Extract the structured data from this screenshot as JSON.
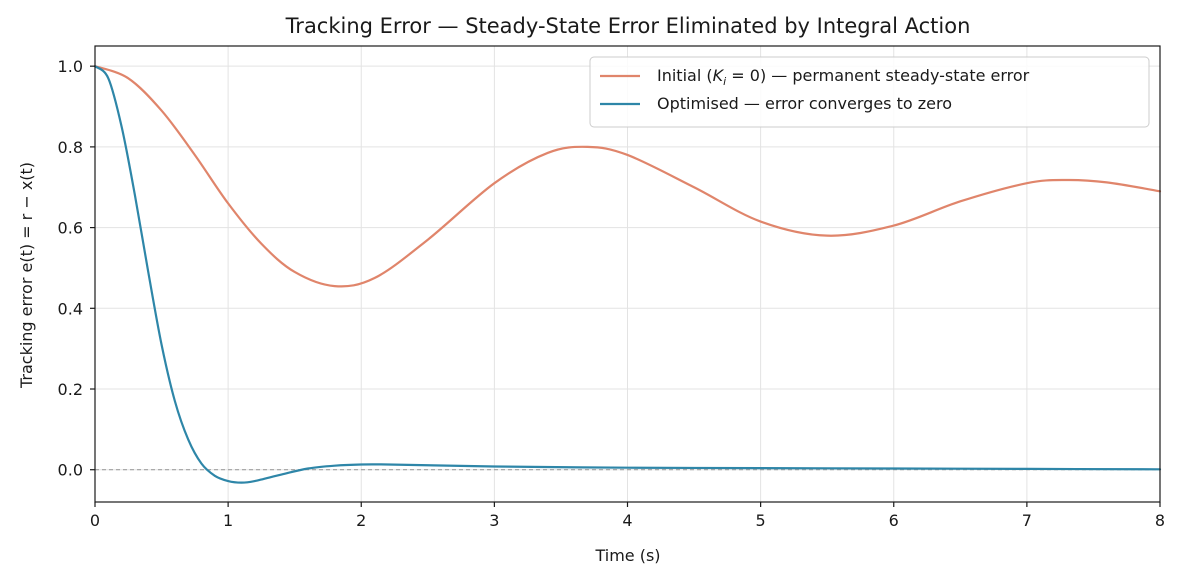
{
  "chart_data": {
    "type": "line",
    "title": "Tracking Error — Steady-State Error Eliminated by Integral Action",
    "xlabel": "Time (s)",
    "ylabel": "Tracking error  e(t) = r − x(t)",
    "xlim": [
      0,
      8
    ],
    "ylim": [
      -0.08,
      1.05
    ],
    "xticks": [
      0,
      1,
      2,
      3,
      4,
      5,
      6,
      7,
      8
    ],
    "yticks": [
      0.0,
      0.2,
      0.4,
      0.6,
      0.8,
      1.0
    ],
    "xtick_labels": [
      "0",
      "1",
      "2",
      "3",
      "4",
      "5",
      "6",
      "7",
      "8"
    ],
    "ytick_labels": [
      "0.0",
      "0.2",
      "0.4",
      "0.6",
      "0.8",
      "1.0"
    ],
    "grid": true,
    "legend_position": "top-right",
    "reference_line": {
      "y": 0.0,
      "style": "dashed",
      "color": "#a0a0a0"
    },
    "series": [
      {
        "name_prefix": "Initial (",
        "name_math_base": "K",
        "name_math_sub": "i",
        "name_math_rest": " = 0",
        "name_suffix": ") — permanent steady-state error",
        "color": "#E0856B",
        "x": [
          0,
          0.25,
          0.5,
          0.75,
          1.0,
          1.25,
          1.5,
          1.8,
          2.1,
          2.5,
          3.0,
          3.4,
          3.7,
          4.0,
          4.5,
          5.0,
          5.5,
          6.0,
          6.5,
          7.0,
          7.3,
          7.6,
          8.0
        ],
        "y": [
          1.0,
          0.97,
          0.89,
          0.78,
          0.66,
          0.56,
          0.49,
          0.455,
          0.475,
          0.57,
          0.71,
          0.785,
          0.8,
          0.78,
          0.7,
          0.615,
          0.58,
          0.605,
          0.665,
          0.71,
          0.718,
          0.712,
          0.69
        ]
      },
      {
        "name": "Optimised — error converges to zero",
        "color": "#2E86A8",
        "x": [
          0,
          0.1,
          0.2,
          0.3,
          0.4,
          0.5,
          0.6,
          0.7,
          0.8,
          0.9,
          1.0,
          1.1,
          1.2,
          1.4,
          1.6,
          1.8,
          2.0,
          2.2,
          2.5,
          3.0,
          4.0,
          5.0,
          6.0,
          7.0,
          8.0
        ],
        "y": [
          1.0,
          0.97,
          0.85,
          0.68,
          0.49,
          0.31,
          0.17,
          0.075,
          0.015,
          -0.015,
          -0.028,
          -0.032,
          -0.028,
          -0.012,
          0.003,
          0.01,
          0.013,
          0.013,
          0.011,
          0.008,
          0.005,
          0.004,
          0.003,
          0.002,
          0.001
        ]
      }
    ]
  }
}
